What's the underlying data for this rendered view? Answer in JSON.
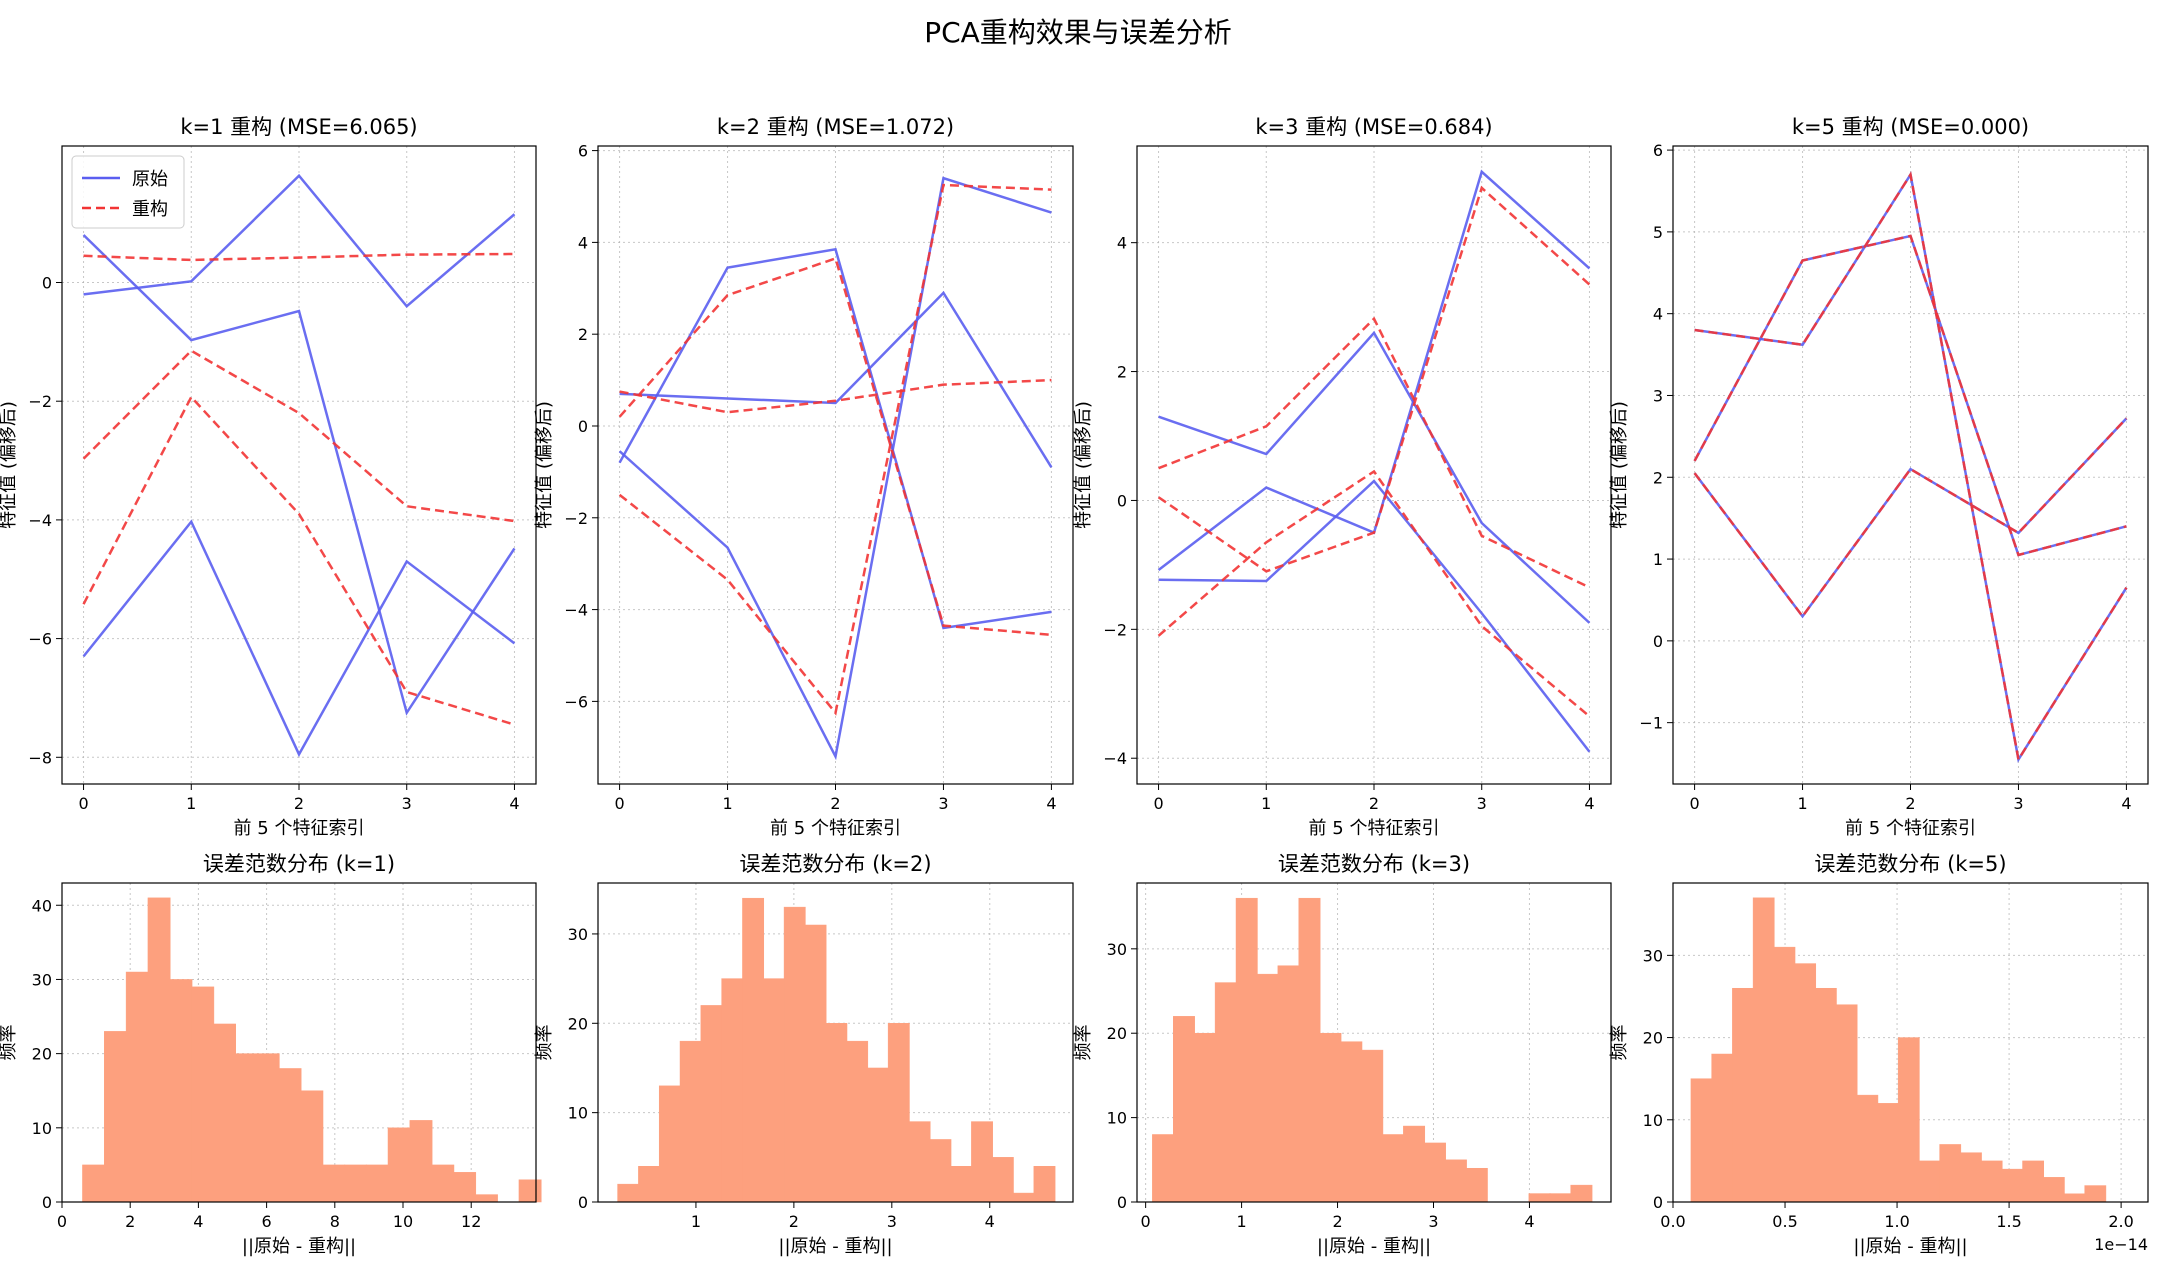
{
  "suptitle": "PCA重构效果与误差分析",
  "colors": {
    "orig": "#5a5ef0",
    "recon": "#f23434",
    "hist": "#fda07e",
    "hist_edge": "#fda07e"
  },
  "chart_data": [
    {
      "type": "line",
      "title": "k=1 重构 (MSE=6.065)",
      "xlabel": "前 5 个特征索引",
      "ylabel": "特征值 (偏移后)",
      "x": [
        0,
        1,
        2,
        3,
        4
      ],
      "xlim": [
        -0.2,
        4.2
      ],
      "ylim": [
        -8.45,
        2.3
      ],
      "yticks": [
        0,
        -2,
        -4,
        -6,
        -8
      ],
      "legend": {
        "position": "top-left",
        "entries": [
          "原始",
          "重构"
        ]
      },
      "grid": true,
      "series": [
        {
          "role": "orig",
          "values": [
            -0.2,
            0.02,
            1.8,
            -0.4,
            1.15
          ]
        },
        {
          "role": "orig",
          "values": [
            0.8,
            -0.97,
            -0.48,
            -7.25,
            -4.48
          ]
        },
        {
          "role": "orig",
          "values": [
            -6.3,
            -4.03,
            -7.95,
            -4.7,
            -6.08
          ]
        },
        {
          "role": "recon",
          "values": [
            0.45,
            0.38,
            0.42,
            0.47,
            0.48
          ]
        },
        {
          "role": "recon",
          "values": [
            -2.97,
            -1.15,
            -2.2,
            -3.77,
            -4.02
          ]
        },
        {
          "role": "recon",
          "values": [
            -5.42,
            -1.93,
            -3.9,
            -6.9,
            -7.45
          ]
        }
      ]
    },
    {
      "type": "line",
      "title": "k=2 重构 (MSE=1.072)",
      "xlabel": "前 5 个特征索引",
      "ylabel": "特征值 (偏移后)",
      "x": [
        0,
        1,
        2,
        3,
        4
      ],
      "xlim": [
        -0.2,
        4.2
      ],
      "ylim": [
        -7.8,
        6.1
      ],
      "yticks": [
        6,
        4,
        2,
        0,
        -2,
        -4,
        -6
      ],
      "grid": true,
      "series": [
        {
          "role": "orig",
          "values": [
            0.7,
            0.6,
            0.5,
            2.9,
            -0.9
          ]
        },
        {
          "role": "orig",
          "values": [
            -0.8,
            3.45,
            3.85,
            -4.4,
            -4.05
          ]
        },
        {
          "role": "orig",
          "values": [
            -0.55,
            -2.65,
            -7.2,
            5.4,
            4.65
          ]
        },
        {
          "role": "recon",
          "values": [
            0.75,
            0.3,
            0.55,
            0.9,
            1.0
          ]
        },
        {
          "role": "recon",
          "values": [
            0.2,
            2.85,
            3.65,
            -4.35,
            -4.55
          ]
        },
        {
          "role": "recon",
          "values": [
            -1.5,
            -3.35,
            -6.25,
            5.25,
            5.15
          ]
        }
      ]
    },
    {
      "type": "line",
      "title": "k=3 重构 (MSE=0.684)",
      "xlabel": "前 5 个特征索引",
      "ylabel": "特征值 (偏移后)",
      "x": [
        0,
        1,
        2,
        3,
        4
      ],
      "xlim": [
        -0.2,
        4.2
      ],
      "ylim": [
        -4.4,
        5.5
      ],
      "yticks": [
        4,
        2,
        0,
        -2,
        -4
      ],
      "grid": true,
      "series": [
        {
          "role": "orig",
          "values": [
            1.3,
            0.72,
            2.6,
            -0.35,
            -1.9
          ]
        },
        {
          "role": "orig",
          "values": [
            -1.08,
            0.2,
            -0.5,
            5.1,
            3.6
          ]
        },
        {
          "role": "orig",
          "values": [
            -1.23,
            -1.25,
            0.3,
            -1.75,
            -3.9
          ]
        },
        {
          "role": "recon",
          "values": [
            0.5,
            1.15,
            2.82,
            -0.55,
            -1.35
          ]
        },
        {
          "role": "recon",
          "values": [
            0.05,
            -1.1,
            -0.5,
            4.85,
            3.35
          ]
        },
        {
          "role": "recon",
          "values": [
            -2.1,
            -0.65,
            0.45,
            -1.95,
            -3.35
          ]
        }
      ]
    },
    {
      "type": "line",
      "title": "k=5 重构 (MSE=0.000)",
      "xlabel": "前 5 个特征索引",
      "ylabel": "特征值 (偏移后)",
      "x": [
        0,
        1,
        2,
        3,
        4
      ],
      "xlim": [
        -0.2,
        4.2
      ],
      "ylim": [
        -1.75,
        6.05
      ],
      "yticks": [
        6,
        5,
        4,
        3,
        2,
        1,
        0,
        -1
      ],
      "grid": true,
      "series": [
        {
          "role": "orig",
          "values": [
            3.8,
            3.62,
            5.7,
            -1.45,
            0.65
          ]
        },
        {
          "role": "orig",
          "values": [
            2.2,
            4.65,
            4.95,
            1.05,
            1.4
          ]
        },
        {
          "role": "orig",
          "values": [
            2.05,
            0.3,
            2.1,
            1.32,
            2.72
          ]
        },
        {
          "role": "recon",
          "values": [
            3.8,
            3.62,
            5.7,
            -1.45,
            0.65
          ]
        },
        {
          "role": "recon",
          "values": [
            2.2,
            4.65,
            4.95,
            1.05,
            1.4
          ]
        },
        {
          "role": "recon",
          "values": [
            2.05,
            0.3,
            2.1,
            1.32,
            2.72
          ]
        }
      ]
    },
    {
      "type": "bar",
      "subtype": "histogram",
      "title": "误差范数分布 (k=1)",
      "xlabel": "||原始 - 重构||",
      "ylabel": "频率",
      "xlim": [
        0,
        13.9
      ],
      "ylim": [
        0,
        43
      ],
      "xticks": [
        0,
        2,
        4,
        6,
        8,
        10,
        12
      ],
      "yticks": [
        0,
        10,
        20,
        30,
        40
      ],
      "grid": true,
      "bin_start": 0.6,
      "bin_width": 0.64,
      "values": [
        5,
        23,
        31,
        41,
        30,
        29,
        24,
        20,
        20,
        18,
        15,
        5,
        5,
        5,
        10,
        11,
        5,
        4,
        1,
        0,
        3
      ]
    },
    {
      "type": "bar",
      "subtype": "histogram",
      "title": "误差范数分布 (k=2)",
      "xlabel": "||原始 - 重构||",
      "ylabel": "频率",
      "xlim": [
        0,
        4.85
      ],
      "ylim": [
        0,
        35.7
      ],
      "xticks": [
        1,
        2,
        3,
        4
      ],
      "yticks": [
        0,
        10,
        20,
        30
      ],
      "grid": true,
      "bin_start": 0.2,
      "bin_width": 0.2125,
      "values": [
        2,
        4,
        13,
        18,
        22,
        25,
        34,
        25,
        33,
        31,
        20,
        18,
        15,
        20,
        9,
        7,
        4,
        9,
        5,
        1,
        4
      ]
    },
    {
      "type": "bar",
      "subtype": "histogram",
      "title": "误差范数分布 (k=3)",
      "xlabel": "||原始 - 重构||",
      "ylabel": "频率",
      "xlim": [
        -0.09,
        4.85
      ],
      "ylim": [
        0,
        37.8
      ],
      "xticks": [
        0,
        1,
        2,
        3,
        4
      ],
      "yticks": [
        0,
        10,
        20,
        30
      ],
      "grid": true,
      "bin_start": 0.07,
      "bin_width": 0.218,
      "values": [
        8,
        22,
        20,
        26,
        36,
        27,
        28,
        36,
        20,
        19,
        18,
        8,
        9,
        7,
        5,
        4,
        0,
        0,
        1,
        1,
        2
      ]
    },
    {
      "type": "bar",
      "subtype": "histogram",
      "title": "误差范数分布 (k=5)",
      "xlabel": "||原始 - 重构||",
      "ylabel": "频率",
      "xlim": [
        0.0,
        2.12
      ],
      "ylim": [
        0,
        38.8
      ],
      "xticks": [
        "0.0",
        "0.5",
        "1.0",
        "1.5",
        "2.0"
      ],
      "yticks": [
        0,
        10,
        20,
        30
      ],
      "grid": true,
      "offset_text": "1e−14",
      "bin_start": 0.08,
      "bin_width": 0.0925,
      "values": [
        15,
        18,
        26,
        37,
        31,
        29,
        26,
        24,
        13,
        12,
        20,
        5,
        7,
        6,
        5,
        4,
        5,
        3,
        1,
        2
      ]
    }
  ]
}
